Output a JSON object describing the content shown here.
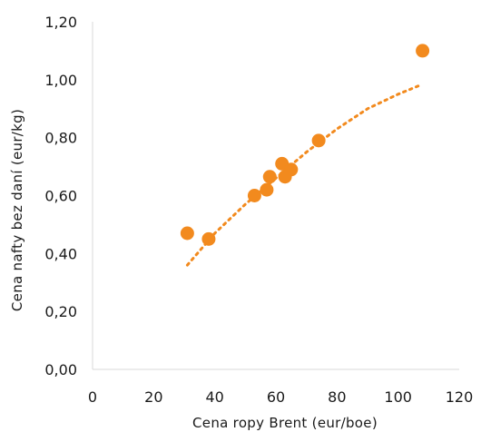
{
  "chart_data": {
    "type": "scatter",
    "title": "",
    "xlabel": "Cena ropy Brent (eur/boe)",
    "ylabel": "Cena nafty bez daní (eur/kg)",
    "xlim": [
      0,
      120
    ],
    "ylim": [
      0,
      1.2
    ],
    "x_ticks": [
      "0",
      "20",
      "40",
      "60",
      "80",
      "100",
      "120"
    ],
    "y_ticks": [
      "0,00",
      "0,20",
      "0,40",
      "0,60",
      "0,80",
      "1,00",
      "1,20"
    ],
    "grid": false,
    "legend": "none",
    "marker_color": "#F28A1E",
    "trendline_color": "#F28A1E",
    "trendline_style": "dotted",
    "points": [
      {
        "x": 31,
        "y": 0.47
      },
      {
        "x": 38,
        "y": 0.45
      },
      {
        "x": 53,
        "y": 0.6
      },
      {
        "x": 57,
        "y": 0.62
      },
      {
        "x": 58,
        "y": 0.665
      },
      {
        "x": 62,
        "y": 0.71
      },
      {
        "x": 63,
        "y": 0.665
      },
      {
        "x": 65,
        "y": 0.69
      },
      {
        "x": 74,
        "y": 0.79
      },
      {
        "x": 108,
        "y": 1.1
      }
    ],
    "trendline": {
      "x_range": [
        31,
        107
      ],
      "points": [
        {
          "x": 31,
          "y": 0.36
        },
        {
          "x": 40,
          "y": 0.47
        },
        {
          "x": 50,
          "y": 0.57
        },
        {
          "x": 60,
          "y": 0.66
        },
        {
          "x": 70,
          "y": 0.75
        },
        {
          "x": 80,
          "y": 0.83
        },
        {
          "x": 90,
          "y": 0.9
        },
        {
          "x": 100,
          "y": 0.95
        },
        {
          "x": 107,
          "y": 0.98
        }
      ]
    }
  }
}
